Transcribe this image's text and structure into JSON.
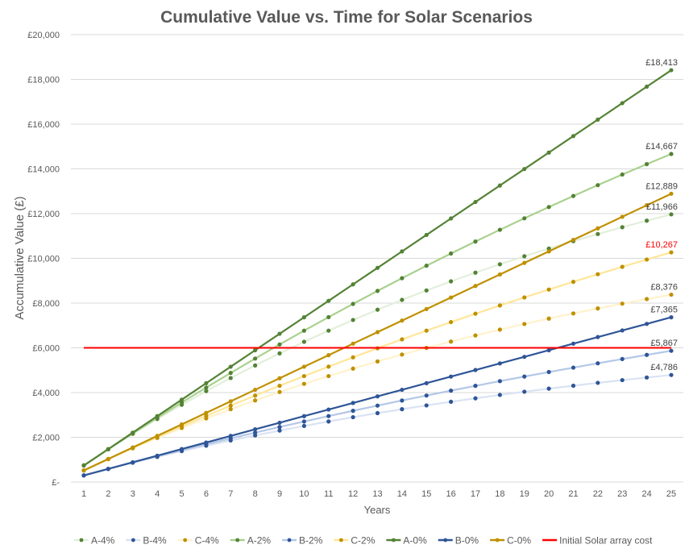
{
  "chart_data": {
    "type": "line",
    "title": "Cumulative Value vs. Time for Solar Scenarios",
    "xlabel": "Years",
    "ylabel": "Accumulative Value (£)",
    "x": [
      1,
      2,
      3,
      4,
      5,
      6,
      7,
      8,
      9,
      10,
      11,
      12,
      13,
      14,
      15,
      16,
      17,
      18,
      19,
      20,
      21,
      22,
      23,
      24,
      25
    ],
    "ylim": [
      0,
      20000
    ],
    "yticks": [
      0,
      2000,
      4000,
      6000,
      8000,
      10000,
      12000,
      14000,
      16000,
      18000,
      20000
    ],
    "ytick_labels": [
      "£-",
      "£2,000",
      "£4,000",
      "£6,000",
      "£8,000",
      "£10,000",
      "£12,000",
      "£14,000",
      "£16,000",
      "£18,000",
      "£20,000"
    ],
    "grid": "horizontal",
    "legend_position": "bottom",
    "series": [
      {
        "name": "A-4%",
        "line_color": "#e2efda",
        "marker_color": "#548235",
        "values": [
          748,
          1467,
          2156,
          2818,
          3454,
          4064,
          4650,
          5212,
          5752,
          6270,
          6768,
          7245,
          7704,
          8144,
          8566,
          8972,
          9361,
          9735,
          10094,
          10439,
          10769,
          11087,
          11392,
          11684,
          11966
        ],
        "end_label": "£11,966"
      },
      {
        "name": "B-4%",
        "line_color": "#dae3f3",
        "marker_color": "#2f5597",
        "values": [
          299,
          587,
          862,
          1127,
          1381,
          1626,
          1860,
          2085,
          2301,
          2508,
          2707,
          2898,
          3081,
          3257,
          3426,
          3589,
          3744,
          3894,
          4037,
          4175,
          4307,
          4434,
          4556,
          4673,
          4786
        ],
        "end_label": "£4,786"
      },
      {
        "name": "C-4%",
        "line_color": "#fff2cc",
        "marker_color": "#bf9000",
        "values": [
          524,
          1027,
          1509,
          1973,
          2418,
          2845,
          3255,
          3648,
          4026,
          4389,
          4737,
          5071,
          5392,
          5700,
          5996,
          6280,
          6553,
          6815,
          7066,
          7307,
          7538,
          7761,
          7974,
          8179,
          8376
        ],
        "end_label": "£8,376"
      },
      {
        "name": "A-2%",
        "line_color": "#a9d18e",
        "marker_color": "#548235",
        "values": [
          740,
          1465,
          2175,
          2872,
          3554,
          4223,
          4878,
          5520,
          6150,
          6767,
          7371,
          7963,
          8544,
          9113,
          9670,
          10217,
          10752,
          11277,
          11791,
          12295,
          12789,
          13273,
          13747,
          14212,
          14667
        ],
        "end_label": "£14,667"
      },
      {
        "name": "B-2%",
        "line_color": "#b4c7e7",
        "marker_color": "#2f5597",
        "values": [
          296,
          586,
          870,
          1149,
          1422,
          1689,
          1951,
          2208,
          2460,
          2706,
          2948,
          3185,
          3417,
          3645,
          3868,
          4086,
          4301,
          4511,
          4716,
          4918,
          5115,
          5309,
          5499,
          5685,
          5867
        ],
        "end_label": "£5,867"
      },
      {
        "name": "C-2%",
        "line_color": "#ffe699",
        "marker_color": "#bf9000",
        "values": [
          518,
          1025,
          1523,
          2010,
          2487,
          2956,
          3414,
          3864,
          4304,
          4736,
          5159,
          5574,
          5980,
          6378,
          6768,
          7151,
          7526,
          7893,
          8253,
          8606,
          8951,
          9290,
          9622,
          9947,
          10267
        ],
        "end_label": "£10,267",
        "end_label_color": "#ff0000"
      },
      {
        "name": "A-0%",
        "line_color": "#548235",
        "marker_color": "#548235",
        "values": [
          737,
          1473,
          2210,
          2946,
          3683,
          4419,
          5156,
          5892,
          6629,
          7365,
          8102,
          8838,
          9575,
          10311,
          11048,
          11784,
          12521,
          13257,
          13994,
          14730,
          15467,
          16203,
          16940,
          17676,
          18413
        ],
        "end_label": "£18,413"
      },
      {
        "name": "B-0%",
        "line_color": "#2f5597",
        "marker_color": "#2f5597",
        "values": [
          295,
          589,
          884,
          1178,
          1473,
          1768,
          2062,
          2357,
          2651,
          2946,
          3241,
          3535,
          3830,
          4124,
          4419,
          4714,
          5008,
          5303,
          5597,
          5892,
          6187,
          6481,
          6776,
          7070,
          7365
        ],
        "end_label": "£7,365"
      },
      {
        "name": "C-0%",
        "line_color": "#bf9000",
        "marker_color": "#bf9000",
        "values": [
          516,
          1031,
          1547,
          2062,
          2578,
          3093,
          3609,
          4124,
          4640,
          5156,
          5671,
          6187,
          6702,
          7218,
          7733,
          8249,
          8765,
          9280,
          9796,
          10311,
          10827,
          11342,
          11858,
          12373,
          12889
        ],
        "end_label": "£12,889"
      },
      {
        "name": "Initial Solar array cost",
        "line_color": "#ff0000",
        "values": [
          6000,
          6000,
          6000,
          6000,
          6000,
          6000,
          6000,
          6000,
          6000,
          6000,
          6000,
          6000,
          6000,
          6000,
          6000,
          6000,
          6000,
          6000,
          6000,
          6000,
          6000,
          6000,
          6000,
          6000,
          6000
        ],
        "markers": false
      }
    ]
  }
}
